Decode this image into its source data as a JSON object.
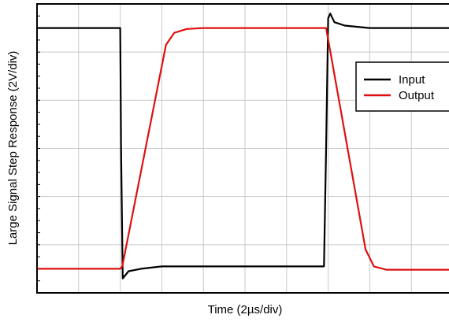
{
  "chart_data": {
    "type": "line",
    "title": "",
    "xlabel": "Time (2µs/div)",
    "ylabel": "Large Signal Step Response (2V/div)",
    "xlim": [
      0,
      10
    ],
    "ylim": [
      -6,
      0
    ],
    "grid": true,
    "legend_position": "right",
    "series": [
      {
        "name": "Input",
        "color": "#000000",
        "x": [
          0,
          2,
          2.02,
          2.06,
          2.2,
          2.5,
          3,
          4,
          5,
          6,
          6.9,
          6.95,
          7.0,
          7.05,
          7.15,
          7.4,
          8,
          9,
          10
        ],
        "y": [
          -0.5,
          -0.5,
          -3.0,
          -5.7,
          -5.55,
          -5.5,
          -5.45,
          -5.45,
          -5.45,
          -5.45,
          -5.45,
          -3.0,
          -0.3,
          -0.2,
          -0.38,
          -0.45,
          -0.5,
          -0.5,
          -0.5
        ]
      },
      {
        "name": "Output",
        "color": "#dd1111",
        "x": [
          0,
          2,
          2.05,
          3.1,
          3.3,
          3.6,
          4,
          5,
          6,
          6.95,
          7.9,
          8.1,
          8.4,
          9,
          10
        ],
        "y": [
          -5.5,
          -5.5,
          -5.45,
          -0.85,
          -0.6,
          -0.52,
          -0.5,
          -0.5,
          -0.5,
          -0.5,
          -5.1,
          -5.45,
          -5.52,
          -5.52,
          -5.52
        ]
      }
    ]
  }
}
